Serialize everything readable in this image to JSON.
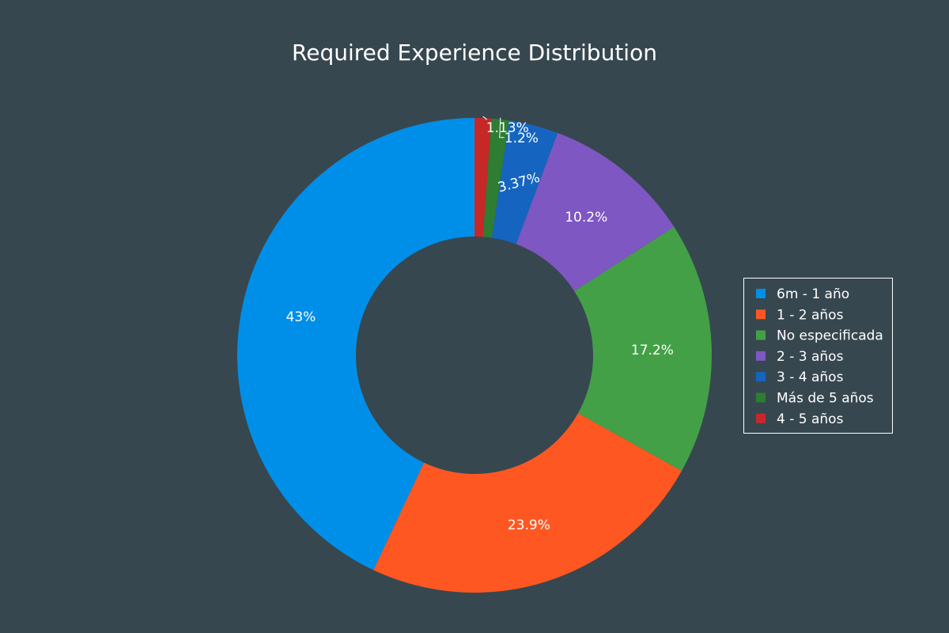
{
  "chart_data": {
    "type": "pie",
    "hole": 0.5,
    "title": "Required Experience Distribution",
    "labels": [
      "6m - 1 año",
      "1 - 2 años",
      "No especificada",
      "2 - 3 años",
      "3 - 4 años",
      "Más de 5 años",
      "4 - 5 años"
    ],
    "values": [
      43.0,
      23.9,
      17.2,
      10.2,
      3.37,
      1.2,
      1.13
    ],
    "text": [
      "43%",
      "23.9%",
      "17.2%",
      "10.2%",
      "3.37%",
      "1.2%",
      "1.13%"
    ],
    "colors": [
      "#008fe8",
      "#ff5722",
      "#43a047",
      "#7e57c2",
      "#1565c0",
      "#2e7d32",
      "#c62828"
    ],
    "direction": "counterclockwise",
    "order": "slices run counterclockwise from 12 o'clock in legend order",
    "legend": {
      "position": "right",
      "border_color": "#ffffff",
      "items": [
        "6m - 1 año",
        "1 - 2 años",
        "No especificada",
        "2 - 3 años",
        "3 - 4 años",
        "Más de 5 años",
        "4 - 5 años"
      ]
    }
  },
  "background_color": "#37474f"
}
